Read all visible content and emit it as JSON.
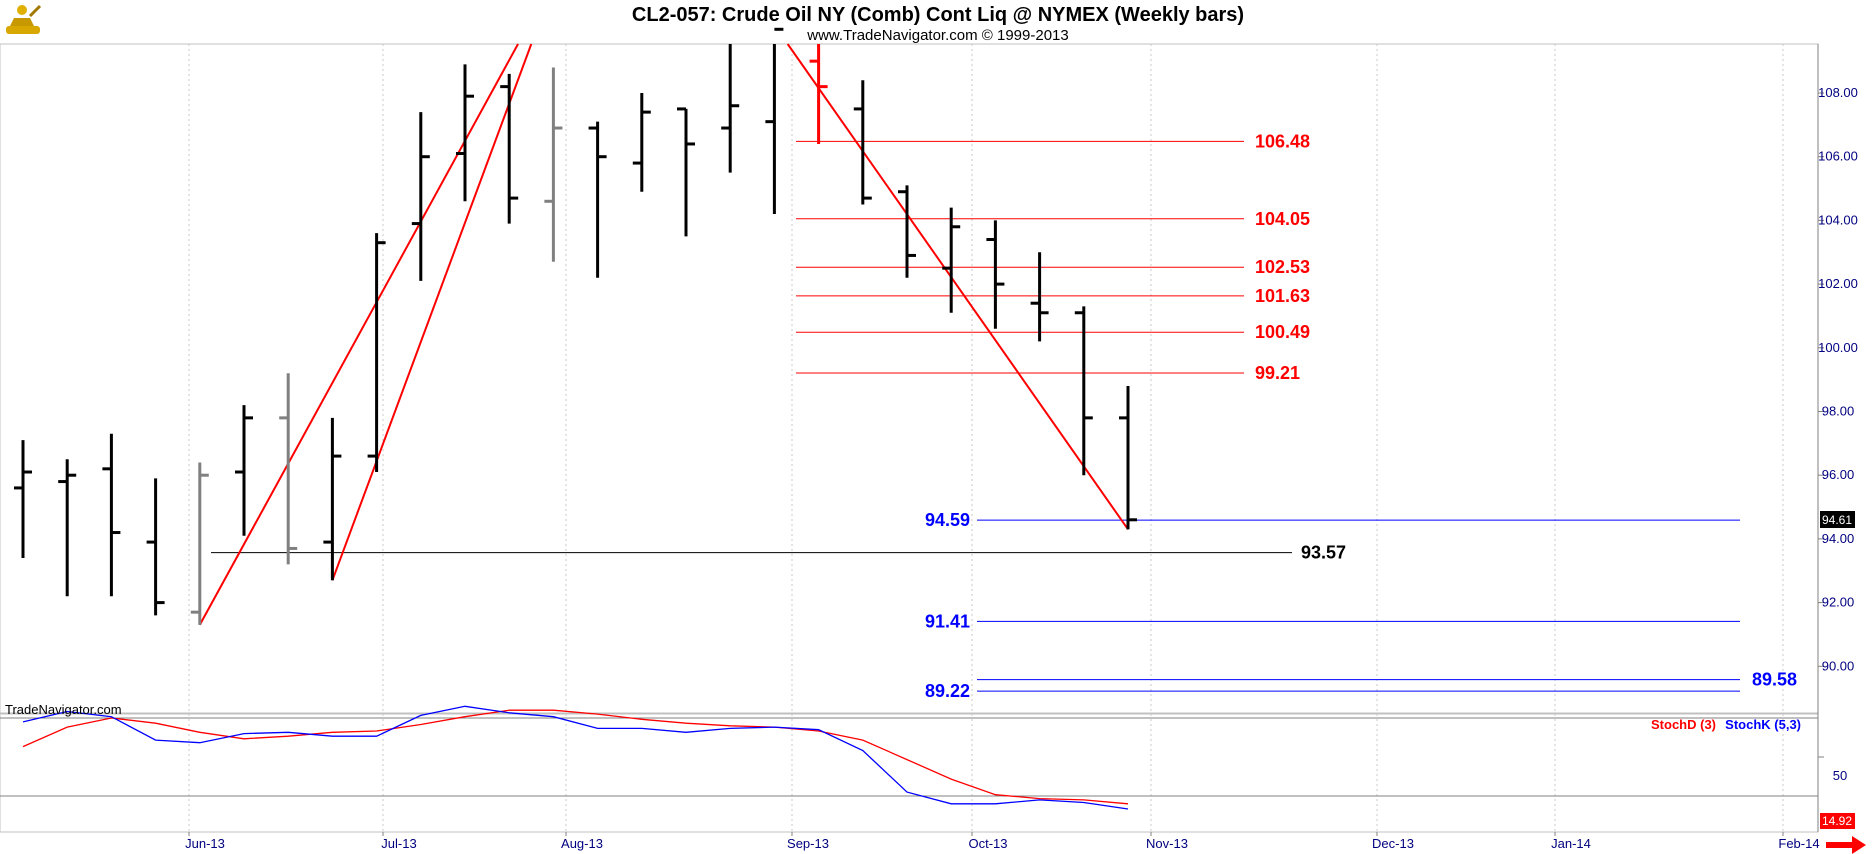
{
  "title": "CL2-057:  Crude Oil NY (Comb) Cont Liq @ NYMEX  (Weekly bars)",
  "subtitle": "www.TradeNavigator.com © 1999-2013",
  "watermark": "TradeNavigator.com",
  "logo_icon": "trader-figure-icon",
  "arrow_icon": "red-arrow-right-icon",
  "colors": {
    "bars": "#000000",
    "gray_bars": "#808080",
    "fib": "#ff0000",
    "blue": "#0000ff",
    "grid": "#c0c0c0",
    "axis_text": "#000080"
  },
  "chart_data": {
    "type": "ohlc",
    "x_ticks": [
      "Jun-13",
      "Jul-13",
      "Aug-13",
      "Sep-13",
      "Oct-13",
      "Nov-13",
      "Dec-13",
      "Jan-14",
      "Feb-14"
    ],
    "y_ticks": [
      "108.00",
      "106.00",
      "104.00",
      "102.00",
      "100.00",
      "98.00",
      "96.00",
      "94.00",
      "92.00",
      "90.00"
    ],
    "ylim": [
      88,
      110.5
    ],
    "last_price": "94.61",
    "bars": [
      {
        "x": 0.0,
        "o": 95.6,
        "h": 97.1,
        "l": 93.4,
        "c": 96.1,
        "color": "black"
      },
      {
        "x": 1.0,
        "o": 95.8,
        "h": 96.5,
        "l": 92.2,
        "c": 96.0,
        "color": "black"
      },
      {
        "x": 2.0,
        "o": 96.2,
        "h": 97.3,
        "l": 92.2,
        "c": 94.2,
        "color": "black"
      },
      {
        "x": 3.0,
        "o": 93.9,
        "h": 95.9,
        "l": 91.6,
        "c": 92.0,
        "color": "black"
      },
      {
        "x": 4.0,
        "o": 91.7,
        "h": 96.4,
        "l": 91.3,
        "c": 96.0,
        "color": "gray"
      },
      {
        "x": 5.0,
        "o": 96.1,
        "h": 98.2,
        "l": 94.1,
        "c": 97.8,
        "color": "black"
      },
      {
        "x": 6.0,
        "o": 97.8,
        "h": 99.2,
        "l": 93.2,
        "c": 93.7,
        "color": "gray"
      },
      {
        "x": 7.0,
        "o": 93.9,
        "h": 97.8,
        "l": 92.7,
        "c": 96.6,
        "color": "black"
      },
      {
        "x": 8.0,
        "o": 96.6,
        "h": 103.6,
        "l": 96.1,
        "c": 103.3,
        "color": "black"
      },
      {
        "x": 9.0,
        "o": 103.9,
        "h": 107.4,
        "l": 102.1,
        "c": 106.0,
        "color": "black"
      },
      {
        "x": 10.0,
        "o": 106.1,
        "h": 108.9,
        "l": 104.6,
        "c": 107.9,
        "color": "black"
      },
      {
        "x": 11.0,
        "o": 108.2,
        "h": 108.6,
        "l": 103.9,
        "c": 104.7,
        "color": "black"
      },
      {
        "x": 12.0,
        "o": 104.6,
        "h": 108.8,
        "l": 102.7,
        "c": 106.9,
        "color": "gray"
      },
      {
        "x": 13.0,
        "o": 106.9,
        "h": 107.1,
        "l": 102.2,
        "c": 106.0,
        "color": "black"
      },
      {
        "x": 14.0,
        "o": 105.8,
        "h": 108.0,
        "l": 104.9,
        "c": 107.4,
        "color": "black"
      },
      {
        "x": 15.0,
        "o": 107.5,
        "h": 107.5,
        "l": 103.5,
        "c": 106.4,
        "color": "black"
      },
      {
        "x": 16.0,
        "o": 106.9,
        "h": 110.0,
        "l": 105.5,
        "c": 107.6,
        "color": "black"
      },
      {
        "x": 17.0,
        "o": 107.1,
        "h": 110.3,
        "l": 104.2,
        "c": 110.0,
        "color": "black"
      },
      {
        "x": 18.0,
        "o": 109.0,
        "h": 110.1,
        "l": 106.4,
        "c": 108.2,
        "color": "red"
      },
      {
        "x": 19.0,
        "o": 107.5,
        "h": 108.4,
        "l": 104.5,
        "c": 104.7,
        "color": "black"
      },
      {
        "x": 20.0,
        "o": 104.9,
        "h": 105.1,
        "l": 102.2,
        "c": 102.9,
        "color": "black"
      },
      {
        "x": 21.0,
        "o": 102.5,
        "h": 104.4,
        "l": 101.1,
        "c": 103.8,
        "color": "black"
      },
      {
        "x": 22.0,
        "o": 103.4,
        "h": 104.0,
        "l": 100.6,
        "c": 102.0,
        "color": "black"
      },
      {
        "x": 23.0,
        "o": 101.4,
        "h": 103.0,
        "l": 100.2,
        "c": 101.1,
        "color": "black"
      },
      {
        "x": 24.0,
        "o": 101.1,
        "h": 101.3,
        "l": 96.0,
        "c": 97.8,
        "color": "black"
      },
      {
        "x": 25.0,
        "o": 97.8,
        "h": 98.8,
        "l": 94.3,
        "c": 94.6,
        "color": "black"
      }
    ],
    "trendlines": [
      {
        "x1": 4.0,
        "y1": 91.3,
        "x2": 11.2,
        "y2": 110.6
      },
      {
        "x1": 7.0,
        "y1": 92.7,
        "x2": 11.5,
        "y2": 110.6
      },
      {
        "x1": 17.3,
        "y1": 110.6,
        "x2": 25.0,
        "y2": 94.3
      }
    ],
    "red_levels": [
      {
        "value": 106.48,
        "label": "106.48"
      },
      {
        "value": 104.05,
        "label": "104.05"
      },
      {
        "value": 102.53,
        "label": "102.53"
      },
      {
        "value": 101.63,
        "label": "101.63"
      },
      {
        "value": 100.49,
        "label": "100.49"
      },
      {
        "value": 99.21,
        "label": "99.21"
      }
    ],
    "blue_levels": [
      {
        "value": 94.59,
        "label": "94.59",
        "label_side": "left"
      },
      {
        "value": 91.41,
        "label": "91.41",
        "label_side": "left"
      },
      {
        "value": 89.58,
        "label": "89.58",
        "label_side": "right"
      },
      {
        "value": 89.22,
        "label": "89.22",
        "label_side": "left"
      }
    ],
    "black_level": {
      "value": 93.57,
      "label": "93.57"
    },
    "indicator": {
      "legend_d": "StochD (3)",
      "legend_k": "StochK (5,3)",
      "y_tick": "50",
      "last_value": "14.92",
      "ylim": [
        0,
        100
      ],
      "upper_band": 80,
      "lower_band": 20,
      "stoch_d": [
        58,
        73,
        80,
        76,
        69,
        64,
        66,
        69,
        70,
        75,
        81,
        86,
        86,
        83,
        79,
        76,
        74,
        73,
        70,
        63,
        48,
        33,
        21,
        18,
        17,
        14
      ],
      "stoch_k": [
        77,
        85,
        81,
        63,
        61,
        68,
        69,
        66,
        66,
        82,
        89,
        84,
        81,
        72,
        72,
        69,
        72,
        73,
        71,
        55,
        23,
        14,
        14,
        17,
        15,
        10
      ]
    }
  }
}
